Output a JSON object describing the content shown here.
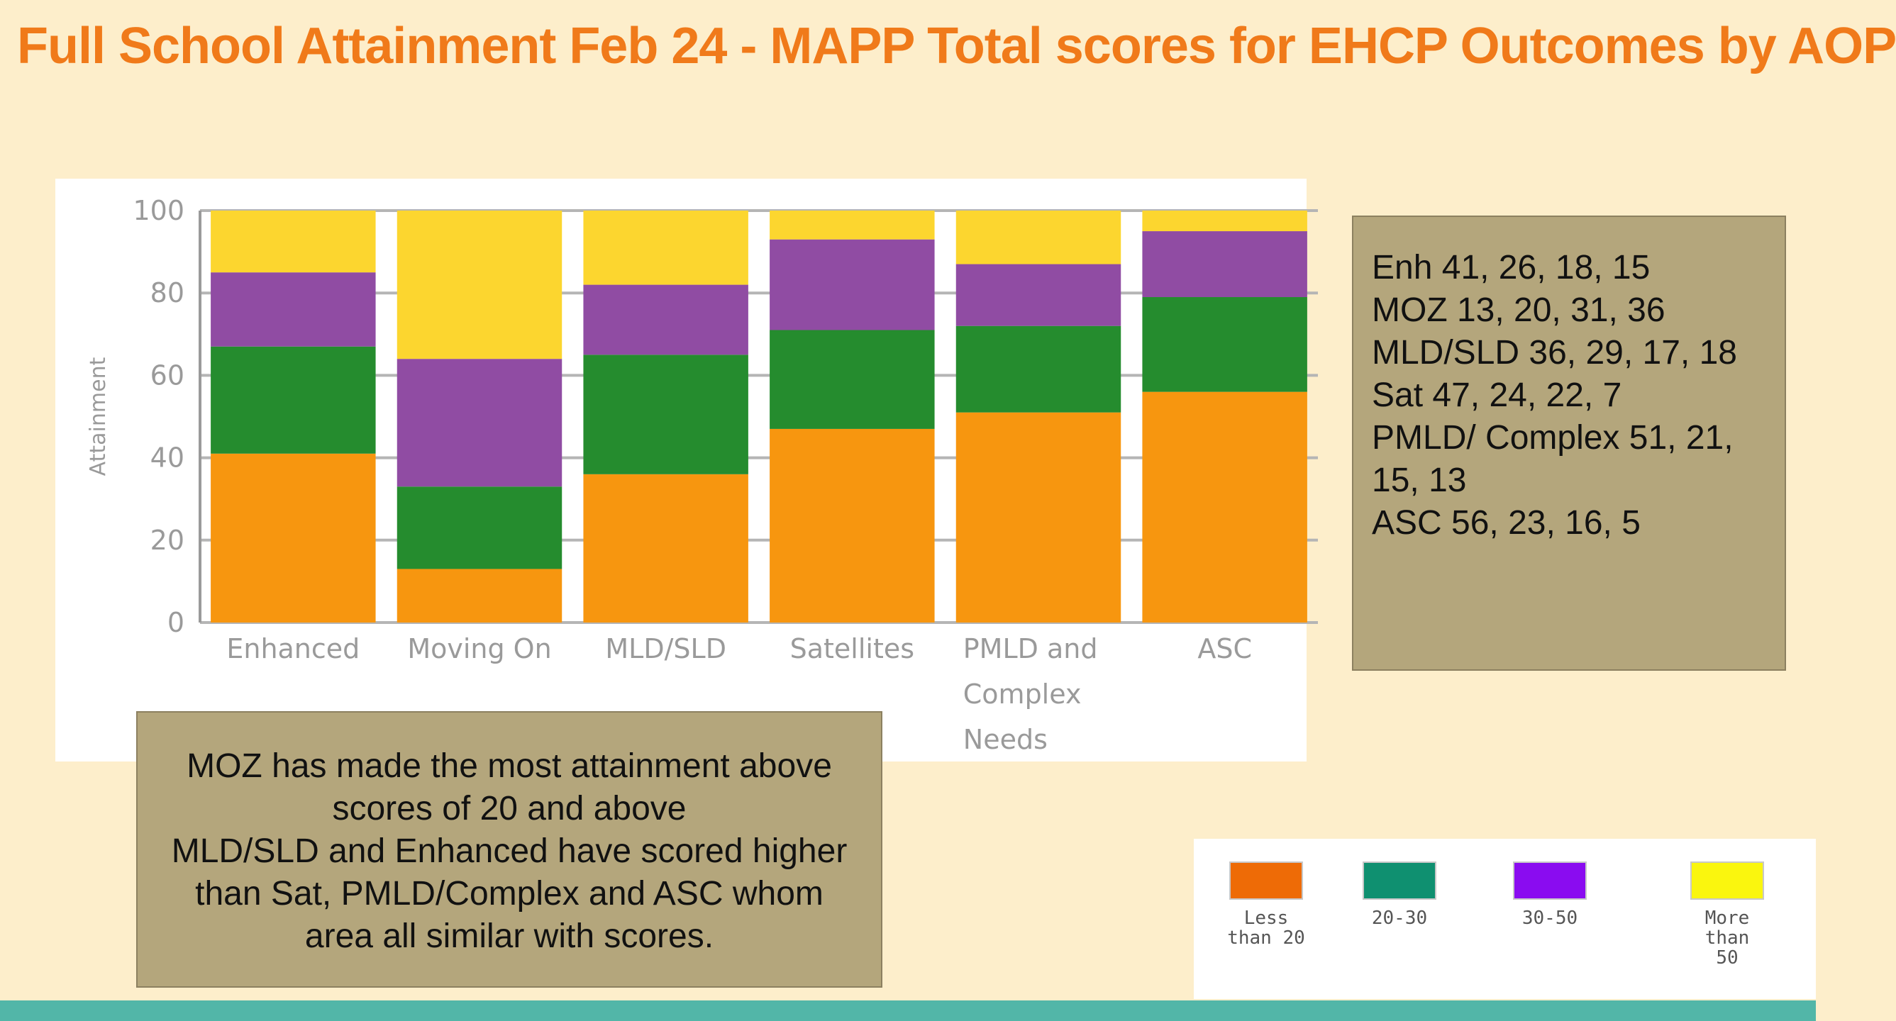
{
  "title": "Full School Attainment Feb 24 - MAPP Total scores for EHCP Outcomes by AOP",
  "chart_data": {
    "type": "bar",
    "stacked": true,
    "ylabel": "Attainment",
    "xlabel": "",
    "ylim": [
      0,
      100
    ],
    "yticks": [
      0,
      20,
      40,
      60,
      80,
      100
    ],
    "grid": true,
    "categories": [
      [
        "Enhanced"
      ],
      [
        "Moving On"
      ],
      [
        "MLD/SLD"
      ],
      [
        "Satellites"
      ],
      [
        "PMLD and",
        "Complex",
        "Needs"
      ],
      [
        "ASC"
      ]
    ],
    "series": [
      {
        "name": "Less than 20",
        "color": "#f7960f",
        "values": [
          41,
          13,
          36,
          47,
          51,
          56
        ]
      },
      {
        "name": "20-30",
        "color": "#258c2e",
        "values": [
          26,
          20,
          29,
          24,
          21,
          23
        ]
      },
      {
        "name": "30-50",
        "color": "#904ca3",
        "values": [
          18,
          31,
          17,
          22,
          15,
          16
        ]
      },
      {
        "name": "More than 50",
        "color": "#fcd62f",
        "values": [
          15,
          36,
          18,
          7,
          13,
          5
        ]
      }
    ]
  },
  "values_box": {
    "lines": [
      "Enh 41, 26, 18, 15",
      "MOZ 13, 20, 31, 36",
      "MLD/SLD 36, 29, 17, 18",
      "Sat 47, 24, 22, 7",
      "PMLD/ Complex 51, 21,",
      "15, 13",
      "ASC 56, 23, 16, 5"
    ]
  },
  "summary_box": {
    "lines": [
      "MOZ has made the most attainment above",
      "scores of 20 and above",
      "MLD/SLD and Enhanced have scored higher",
      "than Sat, PMLD/Complex and ASC whom",
      "area all similar with scores."
    ]
  },
  "legend": [
    {
      "label": "Less\nthan 20",
      "color": "#ee6b06"
    },
    {
      "label": "20-30",
      "color": "#0f9070"
    },
    {
      "label": "30-50",
      "color": "#8a0cf0"
    },
    {
      "label": "More\nthan\n50",
      "color": "#faf60e"
    }
  ]
}
